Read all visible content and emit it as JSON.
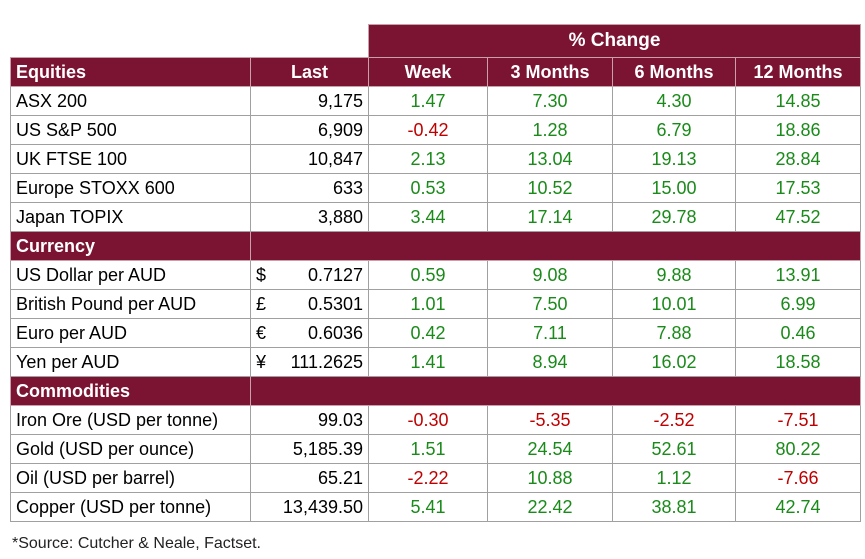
{
  "table": {
    "group_header": "% Change",
    "columns": [
      "Equities",
      "Last",
      "Week",
      "3 Months",
      "6 Months",
      "12 Months"
    ],
    "sections": [
      {
        "rows": [
          [
            "ASX 200",
            "9,175",
            "1.47",
            "7.30",
            "4.30",
            "14.85"
          ],
          [
            "US S&P 500",
            "6,909",
            "-0.42",
            "1.28",
            "6.79",
            "18.86"
          ],
          [
            "UK FTSE 100",
            "10,847",
            "2.13",
            "13.04",
            "19.13",
            "28.84"
          ],
          [
            "Europe STOXX 600",
            "633",
            "0.53",
            "10.52",
            "15.00",
            "17.53"
          ],
          [
            "Japan TOPIX",
            "3,880",
            "3.44",
            "17.14",
            "29.78",
            "47.52"
          ]
        ]
      },
      {
        "title": "Currency",
        "rows": [
          [
            "US Dollar per AUD",
            {
              "symbol": "$",
              "value": "0.7127"
            },
            "0.59",
            "9.08",
            "9.88",
            "13.91"
          ],
          [
            "British Pound per AUD",
            {
              "symbol": "£",
              "value": "0.5301"
            },
            "1.01",
            "7.50",
            "10.01",
            "6.99"
          ],
          [
            "Euro per AUD",
            {
              "symbol": "€",
              "value": "0.6036"
            },
            "0.42",
            "7.11",
            "7.88",
            "0.46"
          ],
          [
            "Yen per AUD",
            {
              "symbol": "¥",
              "value": "111.2625"
            },
            "1.41",
            "8.94",
            "16.02",
            "18.58"
          ]
        ]
      },
      {
        "title": "Commodities",
        "rows": [
          [
            "Iron Ore (USD per tonne)",
            "99.03",
            "-0.30",
            "-5.35",
            "-2.52",
            "-7.51"
          ],
          [
            "Gold (USD per ounce)",
            "5,185.39",
            "1.51",
            "24.54",
            "52.61",
            "80.22"
          ],
          [
            "Oil (USD per barrel)",
            "65.21",
            "-2.22",
            "10.88",
            "1.12",
            "-7.66"
          ],
          [
            "Copper (USD per tonne)",
            "13,439.50",
            "5.41",
            "22.42",
            "38.81",
            "42.74"
          ]
        ]
      }
    ]
  },
  "footnote": "*Source: Cutcher & Neale, Factset."
}
